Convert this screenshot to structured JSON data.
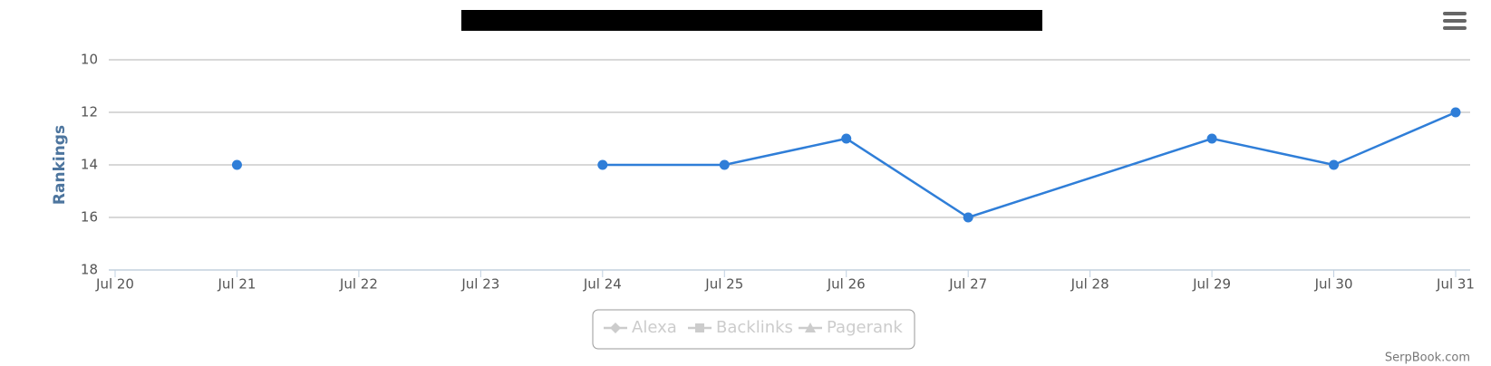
{
  "chart_data": {
    "type": "line",
    "y_label": "Rankings",
    "x": [
      "Jul 21",
      "Jul 23",
      "Jul 24",
      "Jul 25",
      "Jul 26",
      "Jul 27",
      "Jul 29",
      "Jul 30",
      "Jul 31"
    ],
    "series": [
      {
        "color": "#2f7ed8",
        "values": [
          14,
          null,
          14,
          14,
          13,
          16,
          13,
          14,
          12
        ]
      }
    ],
    "xlim": [
      "Jul 20",
      "Jul 31"
    ],
    "xticks": [
      "Jul 20",
      "Jul 21",
      "Jul 22",
      "Jul 23",
      "Jul 24",
      "Jul 25",
      "Jul 26",
      "Jul 27",
      "Jul 28",
      "Jul 29",
      "Jul 30",
      "Jul 31"
    ],
    "ylim": [
      10,
      18
    ],
    "y_reversed": true,
    "yticks": [
      10,
      12,
      14,
      16,
      18
    ],
    "grid": true,
    "legend": [
      "Alexa",
      "Backlinks",
      "Pagerank"
    ],
    "legend_hidden": true,
    "credits": "SerpBook.com"
  }
}
